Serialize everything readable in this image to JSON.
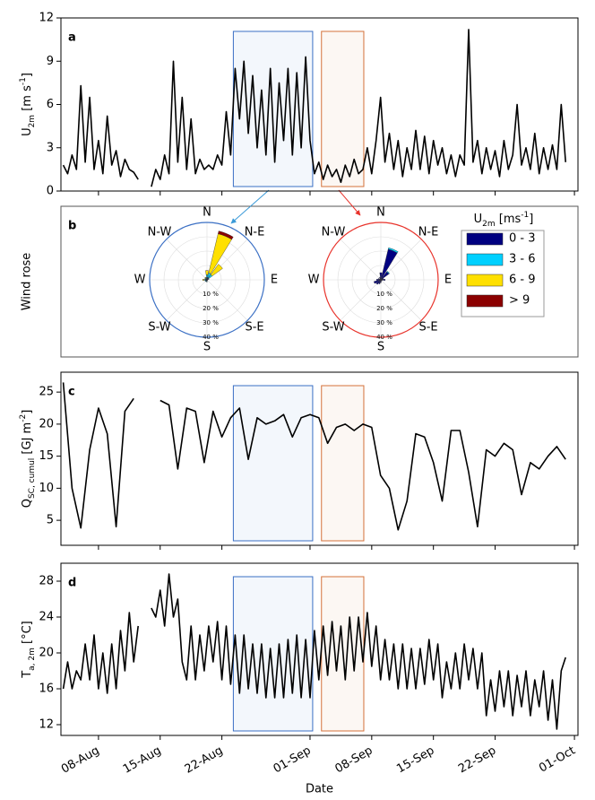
{
  "chart_data": [
    {
      "type": "line",
      "panel_label": "a",
      "ylabel": [
        {
          "text": "U"
        },
        {
          "text": "2m",
          "shift": "sub"
        },
        {
          "text": " [m s"
        },
        {
          "text": "-1",
          "shift": "super"
        },
        {
          "text": "]"
        }
      ],
      "ylim": [
        0,
        12
      ],
      "yticks": [
        0,
        3,
        6,
        9,
        12
      ],
      "highlights": [
        {
          "start": 23.3,
          "end": 32.3,
          "color": "#3a6fc4"
        },
        {
          "start": 33.3,
          "end": 38.1,
          "color": "#d4713a"
        }
      ],
      "x": [
        4,
        4.5,
        5,
        5.5,
        6,
        6.5,
        7,
        7.5,
        8,
        8.5,
        9,
        9.5,
        10,
        10.5,
        11,
        11.5,
        12,
        12.5,
        13,
        13.5,
        14,
        14.5,
        15,
        15.5,
        16,
        16.5,
        17,
        17.5,
        18,
        18.5,
        19,
        19.5,
        20,
        20.5,
        21,
        21.5,
        22,
        22.5,
        23,
        23.5,
        24,
        24.5,
        25,
        25.5,
        26,
        26.5,
        27,
        27.5,
        28,
        28.5,
        29,
        29.5,
        30,
        30.5,
        31,
        31.5,
        32,
        32.5,
        33,
        33.5,
        34,
        34.5,
        35,
        35.5,
        36,
        36.5,
        37,
        37.5,
        38,
        38.5,
        39,
        39.5,
        40,
        40.5,
        41,
        41.5,
        42,
        42.5,
        43,
        43.5,
        44,
        44.5,
        45,
        45.5,
        46,
        46.5,
        47,
        47.5,
        48,
        48.5,
        49,
        49.5,
        50,
        50.5,
        51,
        51.5,
        52,
        52.5,
        53,
        53.5,
        54,
        54.5,
        55,
        55.5,
        56,
        56.5,
        57,
        57.5,
        58,
        58.5,
        59,
        59.5,
        60,
        60.5,
        61
      ],
      "series": [
        {
          "color": "#000000",
          "values": [
            1.8,
            1.2,
            2.5,
            1.5,
            7.3,
            2,
            6.5,
            1.5,
            3.5,
            1.2,
            5.2,
            1.8,
            2.8,
            1,
            2.2,
            1.5,
            1.3,
            0.8,
            null,
            null,
            0.3,
            1.5,
            0.8,
            2.5,
            1.2,
            9,
            2,
            6.5,
            1.5,
            5,
            1.2,
            2.2,
            1.5,
            1.8,
            1.5,
            2.5,
            1.8,
            5.5,
            2.5,
            8.5,
            5,
            9,
            4,
            8,
            3,
            7,
            2.5,
            8.5,
            2,
            7.5,
            3.5,
            8.5,
            2.5,
            8.2,
            3,
            9.3,
            3.5,
            1.2,
            2,
            0.8,
            1.8,
            1,
            1.5,
            0.6,
            1.8,
            1,
            2.2,
            1.2,
            1.5,
            3,
            1.2,
            3.5,
            6.5,
            2,
            4,
            1.5,
            3.5,
            1,
            3,
            1.5,
            4.2,
            1.5,
            3.8,
            1.2,
            3.5,
            1.8,
            3,
            1.2,
            2.5,
            1,
            2.5,
            1.8,
            11.2,
            2,
            3.5,
            1.2,
            3,
            1.5,
            2.8,
            1,
            3.5,
            1.5,
            2.5,
            6,
            1.8,
            3,
            1.5,
            4,
            1.2,
            3,
            1.5,
            3.2,
            1.5,
            6,
            2
          ]
        }
      ]
    },
    {
      "type": "windrose",
      "panel_label": "b",
      "ylabel": "Wind rose",
      "color": "#3a6fc4",
      "legend_title": [
        {
          "text": "U"
        },
        {
          "text": "2m",
          "shift": "sub"
        },
        {
          "text": " [ms"
        },
        {
          "text": "-1",
          "shift": "super"
        },
        {
          "text": "]"
        }
      ],
      "direction_labels": [
        "N",
        "N-E",
        "E",
        "S-E",
        "S",
        "S-W",
        "W",
        "N-W"
      ],
      "rlim": [
        0,
        40
      ],
      "rticks": [
        {
          "value": 10,
          "label": "10 %"
        },
        {
          "value": 20,
          "label": "20 %"
        },
        {
          "value": 30,
          "label": "30 %"
        },
        {
          "value": 40,
          "label": "40 %"
        }
      ],
      "series": [
        {
          "name": "0 - 3",
          "color": "#000080",
          "values": [
            1.5,
            2,
            1.5,
            1,
            0.5,
            0.5,
            0.5,
            0.5,
            1,
            1,
            1,
            1,
            1,
            1,
            1,
            1
          ]
        },
        {
          "name": "3 - 6",
          "color": "#00d0ff",
          "values": [
            2,
            3,
            3,
            0.5,
            0,
            0,
            0,
            0,
            0.5,
            0.5,
            0.5,
            0.5,
            1,
            0.5,
            0.5,
            0.5
          ]
        },
        {
          "name": "6 - 9",
          "color": "#ffe000",
          "values": [
            3,
            28,
            9,
            0,
            0,
            0,
            0,
            0,
            0,
            0,
            0,
            0,
            1,
            0,
            0.5,
            0.5
          ]
        },
        {
          "name": "> 9",
          "color": "#8b0000",
          "values": [
            0,
            2,
            0,
            0,
            0,
            0,
            0,
            0,
            0,
            0,
            0,
            0,
            0,
            0,
            0,
            0
          ]
        }
      ]
    },
    {
      "type": "windrose",
      "color": "#e8322a",
      "direction_labels": [
        "N",
        "N-E",
        "E",
        "S-E",
        "S",
        "S-W",
        "W",
        "N-W"
      ],
      "rlim": [
        0,
        40
      ],
      "rticks": [
        {
          "value": 10,
          "label": "10 %"
        },
        {
          "value": 20,
          "label": "20 %"
        },
        {
          "value": 30,
          "label": "30 %"
        },
        {
          "value": 40,
          "label": "40 %"
        }
      ],
      "series": [
        {
          "color": "#000080",
          "values": [
            5,
            22,
            7,
            2,
            3,
            1,
            1,
            1,
            2,
            3,
            4,
            5,
            3,
            2,
            1,
            2
          ]
        },
        {
          "color": "#00d0ff",
          "values": [
            0,
            1,
            0.5,
            0,
            0,
            0,
            0,
            0,
            0,
            0,
            0,
            0,
            0,
            0,
            0,
            0
          ]
        },
        {
          "color": "#ffe000",
          "values": [
            0,
            0,
            0,
            0,
            0,
            0,
            0,
            0,
            0,
            0,
            0,
            0,
            0,
            0,
            0,
            0
          ]
        },
        {
          "color": "#8b0000",
          "values": [
            0,
            0,
            0,
            0,
            0,
            0,
            0,
            0,
            0,
            0,
            0,
            0,
            0,
            0,
            0,
            0
          ]
        }
      ]
    },
    {
      "type": "line",
      "panel_label": "c",
      "ylabel": [
        {
          "text": "Q"
        },
        {
          "text": "SC, cumul",
          "shift": "sub"
        },
        {
          "text": " [GJ m"
        },
        {
          "text": "-2",
          "shift": "super"
        },
        {
          "text": "]"
        }
      ],
      "ylim": [
        1.1,
        28.1
      ],
      "yticks": [
        5,
        10,
        15,
        20,
        25
      ],
      "highlights": [
        {
          "start": 23.3,
          "end": 32.3,
          "color": "#3a6fc4"
        },
        {
          "start": 33.3,
          "end": 38.1,
          "color": "#d4713a"
        }
      ],
      "x": [
        4,
        5,
        6,
        7,
        8,
        9,
        10,
        11,
        12,
        13,
        14,
        15,
        16,
        17,
        18,
        19,
        20,
        21,
        22,
        23,
        24,
        25,
        26,
        27,
        28,
        29,
        30,
        31,
        32,
        33,
        34,
        35,
        36,
        37,
        38,
        39,
        40,
        41,
        42,
        43,
        44,
        45,
        46,
        47,
        48,
        49,
        50,
        51,
        52,
        53,
        54,
        55,
        56,
        57,
        58,
        59,
        60,
        61
      ],
      "series": [
        {
          "color": "#000000",
          "values": [
            26.5,
            10,
            3.8,
            16,
            22.5,
            18.5,
            4,
            22,
            24,
            null,
            null,
            23.7,
            23,
            13,
            22.5,
            22,
            14,
            22,
            18,
            21,
            22.5,
            14.5,
            21,
            20,
            20.5,
            21.5,
            18,
            21,
            21.5,
            21,
            17,
            19.5,
            20,
            19,
            20,
            19.5,
            12,
            10,
            3.5,
            8,
            18.5,
            18,
            14,
            8,
            19,
            19,
            12.5,
            4,
            16,
            15,
            17,
            16,
            9,
            14,
            13,
            15,
            16.5,
            14.5
          ]
        }
      ]
    },
    {
      "type": "line",
      "panel_label": "d",
      "xlabel": "Date",
      "ylabel": [
        {
          "text": "T"
        },
        {
          "text": "a, 2m",
          "shift": "sub"
        },
        {
          "text": " [°C]"
        }
      ],
      "ylim": [
        10.8,
        30
      ],
      "yticks": [
        12,
        16,
        20,
        24,
        28
      ],
      "xlim": [
        3.74,
        62.4
      ],
      "xticks": [
        {
          "value": 8,
          "label": "08-Aug"
        },
        {
          "value": 15,
          "label": "15-Aug"
        },
        {
          "value": 22,
          "label": "22-Aug"
        },
        {
          "value": 32,
          "label": "01-Sep"
        },
        {
          "value": 39,
          "label": "08-Sep"
        },
        {
          "value": 46,
          "label": "15-Sep"
        },
        {
          "value": 53,
          "label": "22-Sep"
        },
        {
          "value": 62,
          "label": "01-Oct"
        }
      ],
      "highlights": [
        {
          "start": 23.3,
          "end": 32.3,
          "color": "#3a6fc4"
        },
        {
          "start": 33.3,
          "end": 38.1,
          "color": "#d4713a"
        }
      ],
      "x": [
        4,
        4.5,
        5,
        5.5,
        6,
        6.5,
        7,
        7.5,
        8,
        8.5,
        9,
        9.5,
        10,
        10.5,
        11,
        11.5,
        12,
        12.5,
        13,
        13.5,
        14,
        14.5,
        15,
        15.5,
        16,
        16.5,
        17,
        17.5,
        18,
        18.5,
        19,
        19.5,
        20,
        20.5,
        21,
        21.5,
        22,
        22.5,
        23,
        23.5,
        24,
        24.5,
        25,
        25.5,
        26,
        26.5,
        27,
        27.5,
        28,
        28.5,
        29,
        29.5,
        30,
        30.5,
        31,
        31.5,
        32,
        32.5,
        33,
        33.5,
        34,
        34.5,
        35,
        35.5,
        36,
        36.5,
        37,
        37.5,
        38,
        38.5,
        39,
        39.5,
        40,
        40.5,
        41,
        41.5,
        42,
        42.5,
        43,
        43.5,
        44,
        44.5,
        45,
        45.5,
        46,
        46.5,
        47,
        47.5,
        48,
        48.5,
        49,
        49.5,
        50,
        50.5,
        51,
        51.5,
        52,
        52.5,
        53,
        53.5,
        54,
        54.5,
        55,
        55.5,
        56,
        56.5,
        57,
        57.5,
        58,
        58.5,
        59,
        59.5,
        60,
        60.5,
        61
      ],
      "series": [
        {
          "color": "#000000",
          "values": [
            16,
            19,
            16,
            18,
            17,
            21,
            17,
            22,
            16,
            20,
            15.5,
            21,
            16,
            22.5,
            18,
            24.5,
            19,
            23,
            null,
            null,
            25,
            24,
            27,
            23,
            28.8,
            24,
            26,
            19,
            17,
            23,
            17,
            22,
            18,
            23,
            19,
            23.5,
            17,
            23,
            16.5,
            22,
            15.5,
            22,
            16,
            21,
            15.5,
            21,
            15,
            20.5,
            15,
            21,
            15,
            21.5,
            15.5,
            22,
            15,
            21.5,
            15,
            22.5,
            17,
            23,
            17.5,
            23.5,
            18,
            23,
            17,
            24,
            18,
            24,
            19,
            24.5,
            18.5,
            23,
            17,
            21.5,
            17,
            21,
            16,
            21,
            16,
            20.5,
            16,
            20.5,
            16.5,
            21.5,
            17,
            21,
            15,
            19,
            16,
            20,
            16,
            21,
            17,
            20.5,
            16,
            20,
            13,
            17,
            13.5,
            18,
            14,
            18,
            13,
            17.5,
            14,
            18,
            13,
            17,
            14,
            18,
            12.5,
            17,
            11.5,
            18,
            19.5
          ]
        }
      ]
    }
  ]
}
